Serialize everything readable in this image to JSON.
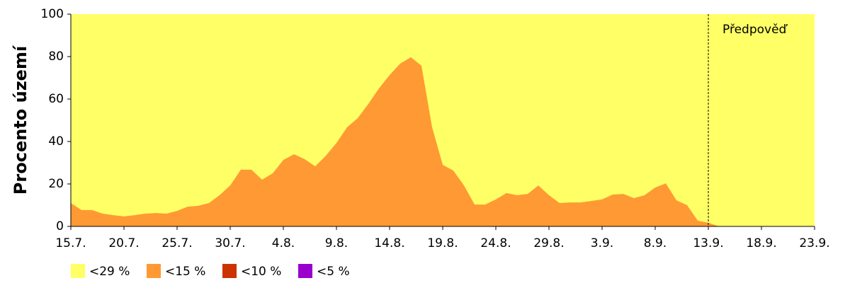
{
  "chart_data": {
    "type": "area",
    "y_label": "Procento území",
    "categories": [
      "15.7.",
      null,
      null,
      null,
      null,
      "20.7.",
      null,
      null,
      null,
      null,
      "25.7.",
      null,
      null,
      null,
      null,
      "30.7.",
      null,
      null,
      null,
      null,
      "4.8.",
      null,
      null,
      null,
      null,
      "9.8.",
      null,
      null,
      null,
      null,
      "14.8.",
      null,
      null,
      null,
      null,
      "19.8.",
      null,
      null,
      null,
      null,
      "24.8.",
      null,
      null,
      null,
      null,
      "29.8.",
      null,
      null,
      null,
      null,
      "3.9.",
      null,
      null,
      null,
      null,
      "8.9.",
      null,
      null,
      null,
      null,
      "13.9.",
      null,
      null,
      null,
      null,
      "18.9.",
      null,
      null,
      null,
      null,
      "23.9."
    ],
    "series": [
      {
        "name": "<29 %",
        "color": "#ffff66",
        "values": [
          100,
          100,
          100,
          100,
          100,
          100,
          100,
          100,
          100,
          100,
          100,
          100,
          100,
          100,
          100,
          100,
          100,
          100,
          100,
          100,
          100,
          100,
          100,
          100,
          100,
          100,
          100,
          100,
          100,
          100,
          100,
          100,
          100,
          100,
          100,
          100,
          100,
          100,
          100,
          100,
          100,
          100,
          100,
          100,
          100,
          100,
          100,
          100,
          100,
          100,
          100,
          100,
          100,
          100,
          100,
          100,
          100,
          100,
          100,
          100,
          100,
          100,
          100,
          100,
          100,
          100,
          100,
          100,
          100,
          100,
          100
        ]
      },
      {
        "name": "<15 %",
        "color": "#ff9933",
        "values": [
          11,
          7.7,
          7.7,
          6,
          5.3,
          4.7,
          5.3,
          6,
          6.3,
          6,
          7.3,
          9.3,
          9.7,
          11,
          14.7,
          19.3,
          26.7,
          26.7,
          22,
          25,
          31.3,
          34,
          31.7,
          28.3,
          33.3,
          39.3,
          46.7,
          51,
          57.7,
          65,
          71.3,
          76.7,
          79.7,
          75.7,
          46.7,
          29,
          26.3,
          19.3,
          10.3,
          10.3,
          12.7,
          15.7,
          14.7,
          15.3,
          19.3,
          14.7,
          11,
          11.3,
          11.3,
          12,
          12.7,
          15,
          15.3,
          13.3,
          14.7,
          18.3,
          20.3,
          12.3,
          10,
          2.7,
          1.7,
          0,
          0,
          0,
          0,
          0,
          0,
          0,
          0,
          0,
          0
        ]
      },
      {
        "name": "<10 %",
        "color": "#cc3300",
        "values": [
          0,
          0,
          0,
          0,
          0,
          0,
          0,
          0,
          0,
          0,
          0,
          0,
          0,
          0,
          0,
          0,
          0,
          0,
          0,
          0,
          0,
          0,
          0,
          0,
          0,
          0,
          0,
          0,
          0,
          0,
          0,
          0,
          0,
          0,
          0,
          0,
          0,
          0,
          0,
          0,
          0,
          0,
          0,
          0,
          0,
          0,
          0,
          0,
          0,
          0,
          0,
          0,
          0,
          0,
          0,
          0,
          0,
          0,
          0,
          0,
          0,
          0,
          0,
          0,
          0,
          0,
          0,
          0,
          0,
          0,
          0
        ]
      },
      {
        "name": "<5 %",
        "color": "#9900cc",
        "values": [
          0,
          0,
          0,
          0,
          0,
          0,
          0,
          0,
          0,
          0,
          0,
          0,
          0,
          0,
          0,
          0,
          0,
          0,
          0,
          0,
          0,
          0,
          0,
          0,
          0,
          0,
          0,
          0,
          0,
          0,
          0,
          0,
          0,
          0,
          0,
          0,
          0,
          0,
          0,
          0,
          0,
          0,
          0,
          0,
          0,
          0,
          0,
          0,
          0,
          0,
          0,
          0,
          0,
          0,
          0,
          0,
          0,
          0,
          0,
          0,
          0,
          0,
          0,
          0,
          0,
          0,
          0,
          0,
          0,
          0,
          0
        ]
      }
    ],
    "forecast_start": "13.9.",
    "forecast_label": "Předpověď",
    "ylim": [
      0,
      100
    ],
    "yticks": [
      0,
      20,
      40,
      60,
      80,
      100
    ]
  }
}
